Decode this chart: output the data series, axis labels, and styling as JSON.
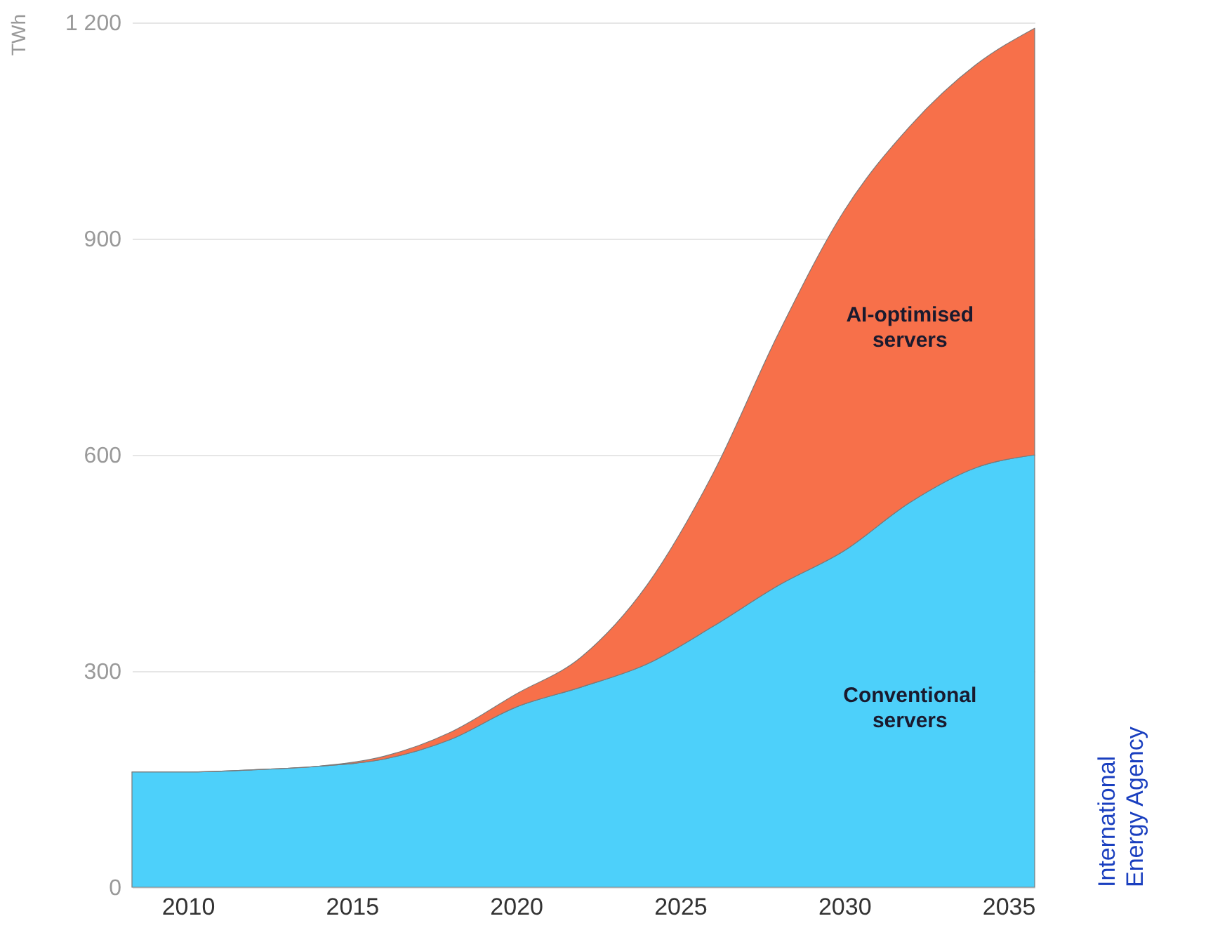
{
  "chart_data": {
    "type": "area",
    "stacked": true,
    "ylabel": "TWh",
    "x": [
      2008.3,
      2010,
      2012,
      2014,
      2016,
      2018,
      2020,
      2022,
      2024,
      2026,
      2028,
      2030,
      2032,
      2034,
      2035.8
    ],
    "series": [
      {
        "name": "Conventional servers",
        "color": "#4dd0fa",
        "values": [
          160,
          160,
          163,
          168,
          178,
          205,
          250,
          278,
          310,
          362,
          419,
          467,
          534,
          582,
          600
        ]
      },
      {
        "name": "AI-optimised servers",
        "color": "#f7704a",
        "values": [
          0,
          0,
          0,
          0,
          4,
          10,
          18,
          42,
          110,
          212,
          350,
          472,
          522,
          559,
          592
        ]
      }
    ],
    "xlim": [
      2008.3,
      2035.8
    ],
    "xticks": [
      2010,
      2015,
      2020,
      2025,
      2030,
      2035
    ],
    "ylim": [
      0,
      1200
    ],
    "yticks": [
      0,
      300,
      600,
      900,
      {
        "value": 1200,
        "label": "1 200"
      }
    ],
    "grid": "y",
    "annotations": [
      "International Energy Agency"
    ]
  }
}
